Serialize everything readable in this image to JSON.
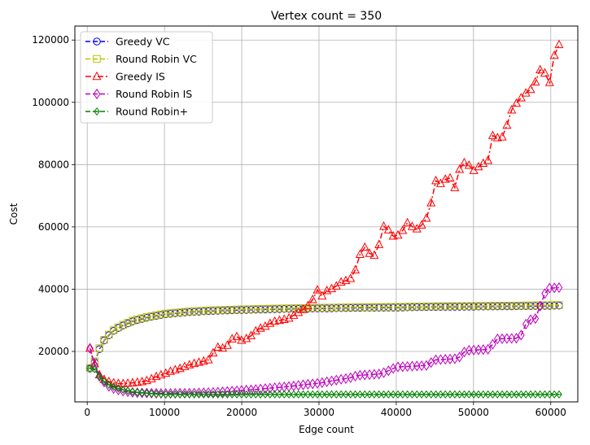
{
  "chart_data": {
    "type": "line",
    "title": "Vertex count = 350",
    "xlabel": "Edge count",
    "ylabel": "Cost",
    "xlim": [
      -1600,
      63500
    ],
    "ylim": [
      3800,
      124500
    ],
    "xticks": [
      0,
      10000,
      20000,
      30000,
      40000,
      50000,
      60000
    ],
    "yticks": [
      20000,
      40000,
      60000,
      80000,
      100000,
      120000
    ],
    "xtick_labels": [
      "0",
      "10000",
      "20000",
      "30000",
      "40000",
      "50000",
      "60000"
    ],
    "ytick_labels": [
      "20000",
      "40000",
      "60000",
      "80000",
      "100000",
      "120000"
    ],
    "grid": true,
    "legend_position": "upper-left",
    "x_range": {
      "start": 349,
      "end": 61075,
      "count": 100
    },
    "series": [
      {
        "name": "Greedy VC",
        "color": "#0000ff",
        "marker": "circle",
        "linestyle": "dashed",
        "key_points": [
          [
            349,
            14500
          ],
          [
            960,
            16500
          ],
          [
            1570,
            20700
          ],
          [
            2180,
            23500
          ],
          [
            2800,
            25200
          ],
          [
            3500,
            26800
          ],
          [
            4500,
            28200
          ],
          [
            6000,
            29800
          ],
          [
            8000,
            31000
          ],
          [
            10000,
            31900
          ],
          [
            13000,
            32600
          ],
          [
            16000,
            33000
          ],
          [
            20000,
            33300
          ],
          [
            25000,
            33600
          ],
          [
            30000,
            33800
          ],
          [
            35000,
            34000
          ],
          [
            40000,
            34100
          ],
          [
            45000,
            34300
          ],
          [
            50000,
            34400
          ],
          [
            55000,
            34500
          ],
          [
            61075,
            34700
          ]
        ]
      },
      {
        "name": "Round Robin VC",
        "color": "#bfbf00",
        "marker": "square",
        "linestyle": "dashed",
        "key_points": [
          [
            349,
            14700
          ],
          [
            960,
            16800
          ],
          [
            1570,
            21000
          ],
          [
            2180,
            23700
          ],
          [
            2800,
            25400
          ],
          [
            3500,
            27000
          ],
          [
            4500,
            28400
          ],
          [
            6000,
            30000
          ],
          [
            8000,
            31200
          ],
          [
            10000,
            32100
          ],
          [
            13000,
            32800
          ],
          [
            16000,
            33200
          ],
          [
            20000,
            33500
          ],
          [
            25000,
            33800
          ],
          [
            30000,
            34000
          ],
          [
            35000,
            34200
          ],
          [
            40000,
            34300
          ],
          [
            45000,
            34500
          ],
          [
            50000,
            34600
          ],
          [
            55000,
            34700
          ],
          [
            61075,
            34900
          ]
        ]
      },
      {
        "name": "Greedy IS",
        "color": "#ff0000",
        "marker": "triangle",
        "linestyle": "dashdot",
        "key_points": [
          [
            349,
            21000
          ],
          [
            960,
            16000
          ],
          [
            1570,
            12500
          ],
          [
            2180,
            11000
          ],
          [
            2800,
            10300
          ],
          [
            3500,
            9800
          ],
          [
            4500,
            9600
          ],
          [
            5500,
            9800
          ],
          [
            7000,
            10200
          ],
          [
            8000,
            10800
          ],
          [
            9000,
            12000
          ],
          [
            10000,
            12800
          ],
          [
            11000,
            13800
          ],
          [
            12000,
            14500
          ],
          [
            13000,
            15500
          ],
          [
            14000,
            16200
          ],
          [
            15000,
            16800
          ],
          [
            16000,
            17500
          ],
          [
            16600,
            21500
          ],
          [
            17500,
            21000
          ],
          [
            18500,
            22500
          ],
          [
            19000,
            25500
          ],
          [
            20000,
            23500
          ],
          [
            21000,
            24500
          ],
          [
            22000,
            27000
          ],
          [
            23000,
            28000
          ],
          [
            24000,
            29500
          ],
          [
            25000,
            30000
          ],
          [
            26000,
            30500
          ],
          [
            27000,
            32000
          ],
          [
            28000,
            33500
          ],
          [
            29000,
            35500
          ],
          [
            29700,
            40000
          ],
          [
            30500,
            37500
          ],
          [
            31000,
            39500
          ],
          [
            32000,
            40500
          ],
          [
            33000,
            42500
          ],
          [
            34000,
            43000
          ],
          [
            35000,
            47500
          ],
          [
            35600,
            54500
          ],
          [
            36500,
            51500
          ],
          [
            37500,
            50500
          ],
          [
            38200,
            60500
          ],
          [
            39000,
            59000
          ],
          [
            39600,
            57000
          ],
          [
            40500,
            57500
          ],
          [
            41500,
            61500
          ],
          [
            42500,
            59000
          ],
          [
            43500,
            61000
          ],
          [
            44300,
            64500
          ],
          [
            45000,
            75000
          ],
          [
            46000,
            73500
          ],
          [
            46700,
            77000
          ],
          [
            47600,
            72500
          ],
          [
            48300,
            79500
          ],
          [
            49000,
            81000
          ],
          [
            50000,
            78000
          ],
          [
            51000,
            80000
          ],
          [
            52000,
            81500
          ],
          [
            52500,
            89500
          ],
          [
            53500,
            88000
          ],
          [
            54000,
            90000
          ],
          [
            55000,
            98000
          ],
          [
            56000,
            101000
          ],
          [
            56800,
            103000
          ],
          [
            57600,
            104500
          ],
          [
            58300,
            108000
          ],
          [
            58900,
            112500
          ],
          [
            59700,
            105000
          ],
          [
            60200,
            109500
          ],
          [
            60600,
            118000
          ],
          [
            61075,
            118500
          ]
        ]
      },
      {
        "name": "Round Robin IS",
        "color": "#bf00bf",
        "marker": "diamond",
        "linestyle": "dashed",
        "key_points": [
          [
            349,
            21000
          ],
          [
            960,
            15500
          ],
          [
            1570,
            12000
          ],
          [
            2180,
            10200
          ],
          [
            2800,
            8800
          ],
          [
            3500,
            8000
          ],
          [
            4500,
            7300
          ],
          [
            6000,
            6800
          ],
          [
            8000,
            6600
          ],
          [
            10000,
            6500
          ],
          [
            13000,
            6600
          ],
          [
            16000,
            6800
          ],
          [
            18000,
            7100
          ],
          [
            20000,
            7500
          ],
          [
            22000,
            7800
          ],
          [
            24000,
            8300
          ],
          [
            26000,
            8700
          ],
          [
            28000,
            9300
          ],
          [
            30000,
            9800
          ],
          [
            32000,
            10700
          ],
          [
            34000,
            11500
          ],
          [
            35000,
            12300
          ],
          [
            38000,
            12800
          ],
          [
            39000,
            13800
          ],
          [
            40000,
            15000
          ],
          [
            44000,
            15500
          ],
          [
            45000,
            17300
          ],
          [
            48000,
            17700
          ],
          [
            49000,
            20300
          ],
          [
            52000,
            20700
          ],
          [
            53000,
            24000
          ],
          [
            56000,
            24300
          ],
          [
            57000,
            30000
          ],
          [
            58000,
            30500
          ],
          [
            59500,
            40300
          ],
          [
            61075,
            40500
          ]
        ]
      },
      {
        "name": "Round Robin+",
        "color": "#008000",
        "marker": "thin-diamond",
        "linestyle": "dashed",
        "key_points": [
          [
            349,
            14500
          ],
          [
            960,
            14300
          ],
          [
            1570,
            12000
          ],
          [
            2180,
            10400
          ],
          [
            2800,
            9300
          ],
          [
            3500,
            8500
          ],
          [
            4500,
            7800
          ],
          [
            6000,
            7000
          ],
          [
            8000,
            6500
          ],
          [
            10000,
            6200
          ],
          [
            15000,
            6200
          ],
          [
            61075,
            6200
          ]
        ]
      }
    ]
  }
}
